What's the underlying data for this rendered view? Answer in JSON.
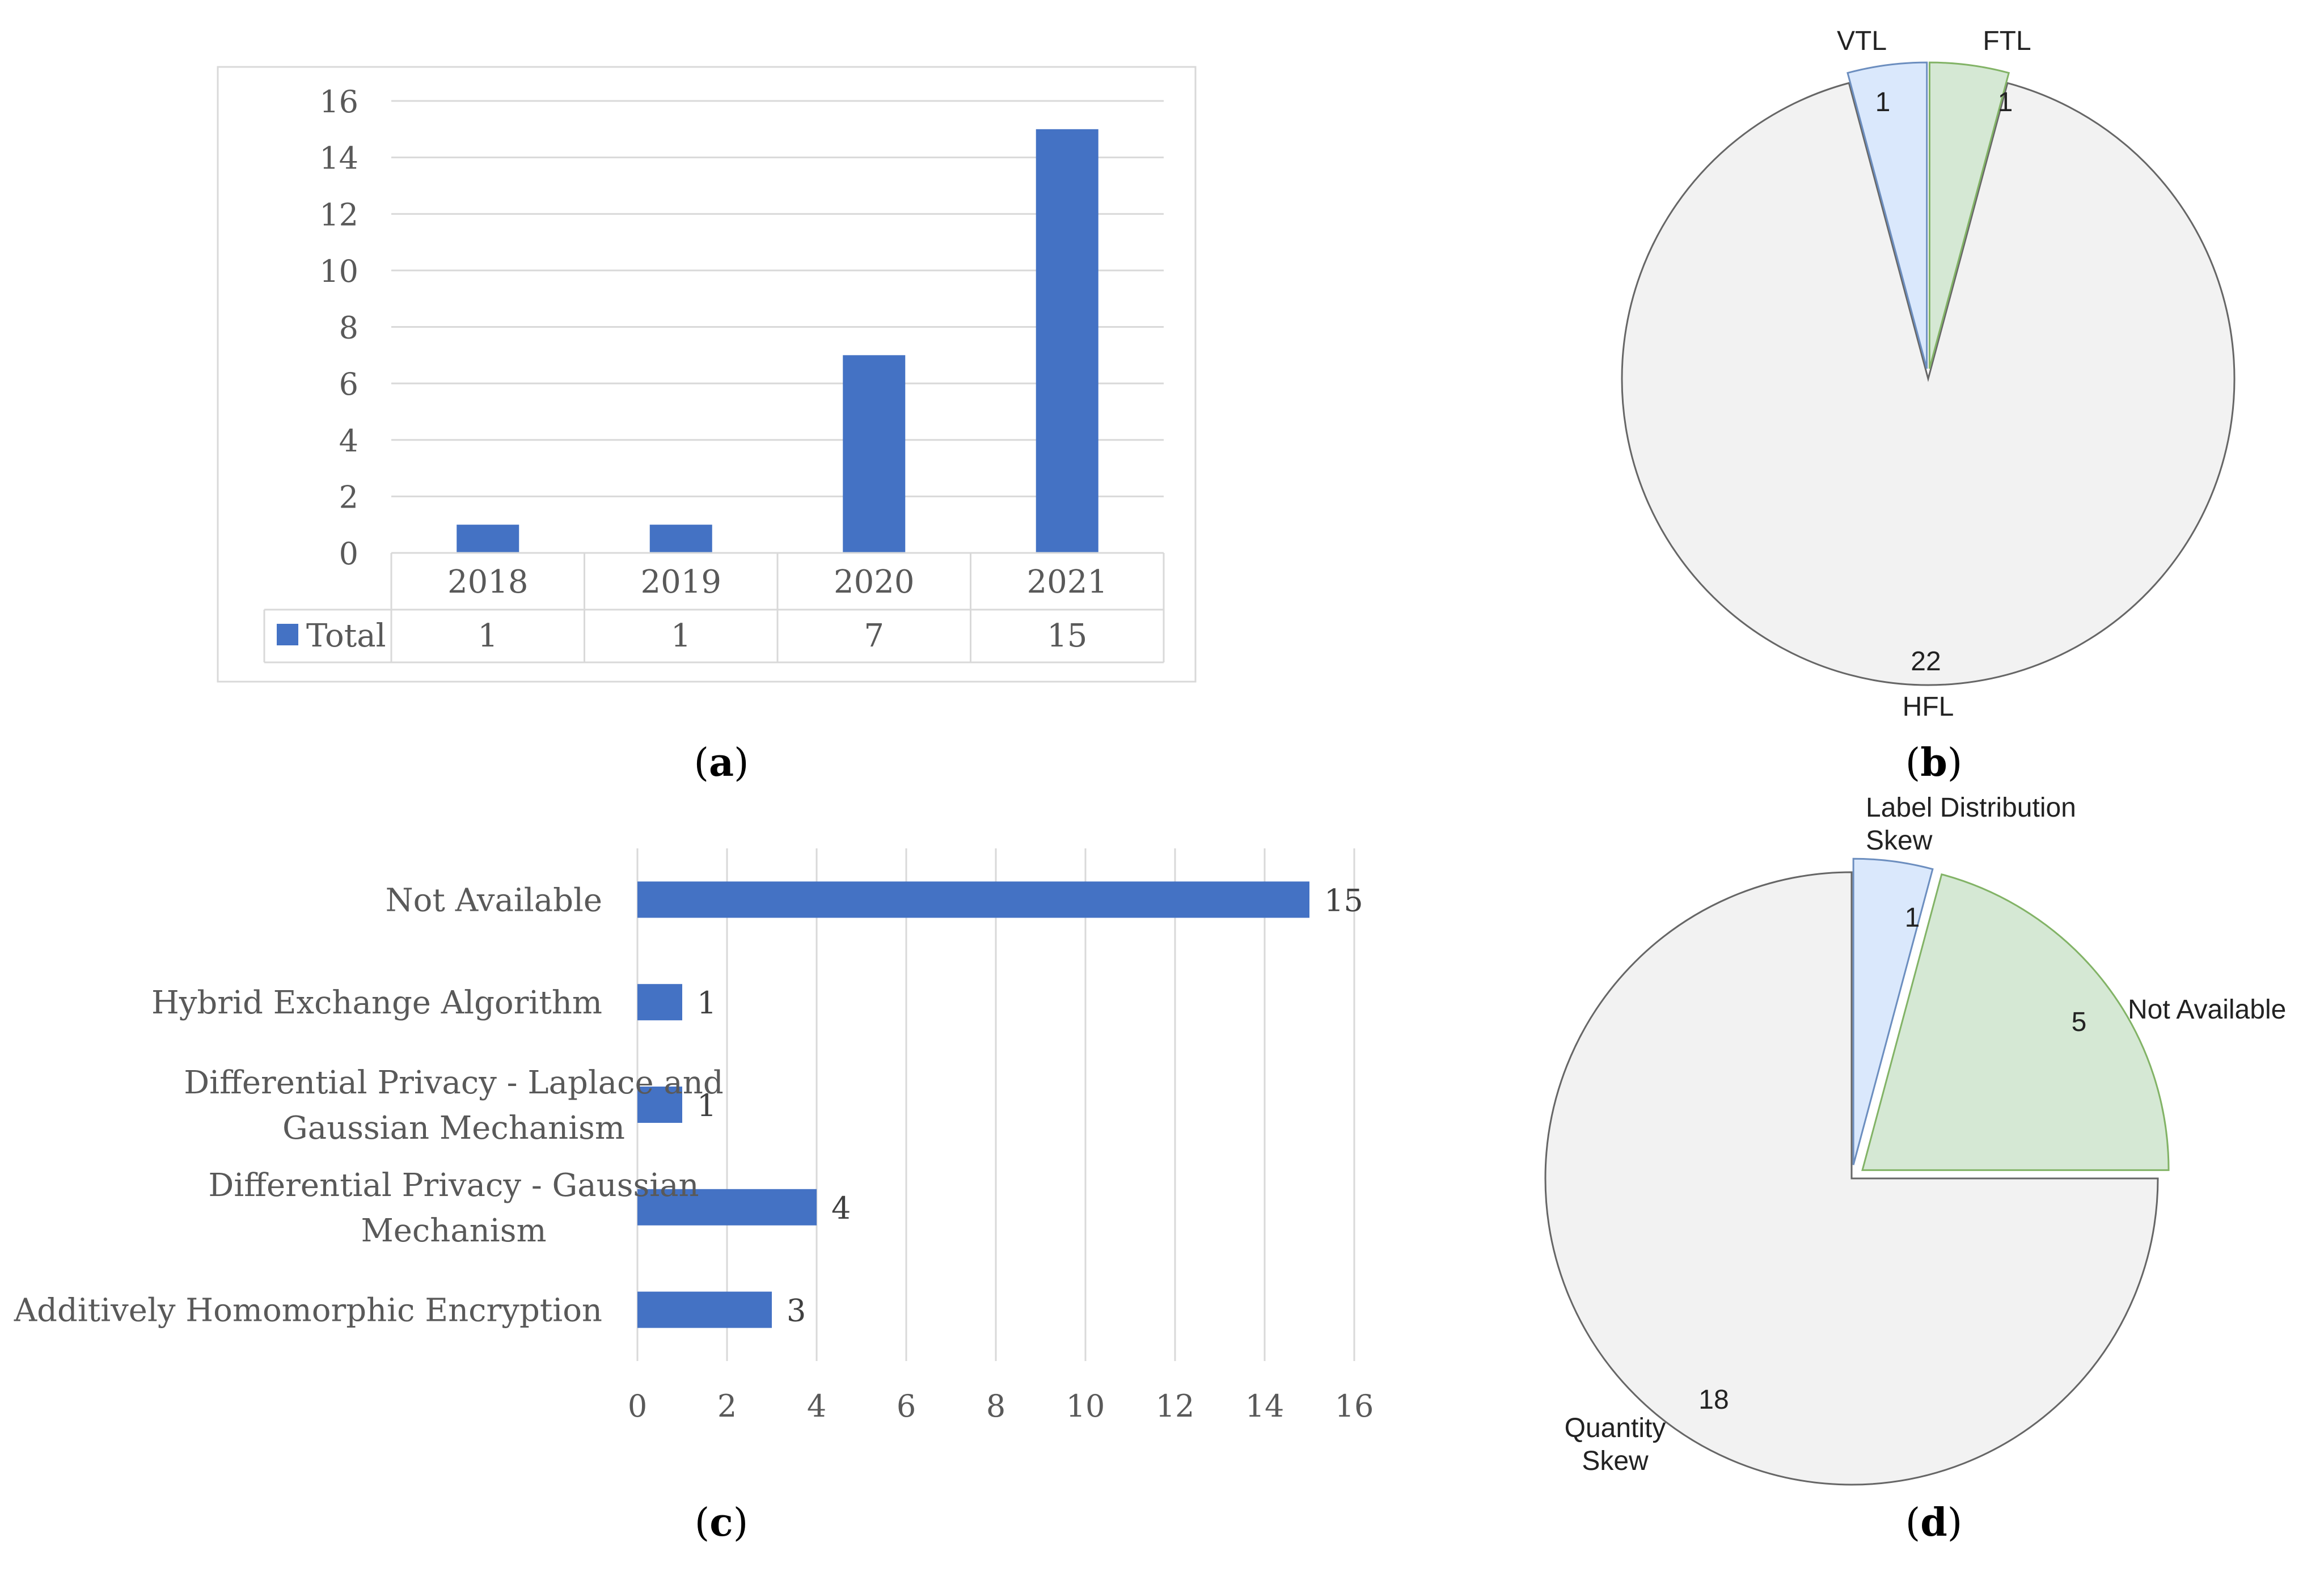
{
  "colors": {
    "bar": "#4472c4",
    "grid": "#d9d9d9",
    "pie_main": "#f2f2f2",
    "pie_blue": "#dae8fc",
    "pie_green": "#d5e8d4",
    "pie_stroke": "#666666",
    "blue_stroke": "#6c8ebf",
    "green_stroke": "#82b366"
  },
  "chart_data": [
    {
      "id": "a",
      "caption": "a",
      "type": "bar",
      "categories": [
        "2018",
        "2019",
        "2020",
        "2021"
      ],
      "series": [
        {
          "name": "Total",
          "values": [
            1,
            1,
            7,
            15
          ]
        }
      ],
      "yticks": [
        "0",
        "2",
        "4",
        "6",
        "8",
        "10",
        "12",
        "14",
        "16"
      ],
      "ylim": [
        0,
        16
      ],
      "data_table": true,
      "title": "",
      "xlabel": "",
      "ylabel": ""
    },
    {
      "id": "b",
      "caption": "b",
      "type": "pie",
      "slices": [
        {
          "label": "HFL",
          "value": 22
        },
        {
          "label": "VTL",
          "value": 1
        },
        {
          "label": "FTL",
          "value": 1
        }
      ]
    },
    {
      "id": "c",
      "caption": "c",
      "type": "bar",
      "orientation": "horizontal",
      "categories": [
        [
          "Not Available"
        ],
        [
          "Hybrid Exchange Algorithm"
        ],
        [
          "Differential Privacy - Laplace and",
          "Gaussian Mechanism"
        ],
        [
          "Differential Privacy - Gaussian",
          "Mechanism"
        ],
        [
          "Additively Homomorphic Encryption"
        ]
      ],
      "values": [
        15,
        1,
        1,
        4,
        3
      ],
      "value_labels": [
        "15",
        "1",
        "1",
        "4",
        "3"
      ],
      "xticks": [
        "0",
        "2",
        "4",
        "6",
        "8",
        "10",
        "12",
        "14",
        "16"
      ],
      "xlim": [
        0,
        16
      ]
    },
    {
      "id": "d",
      "caption": "d",
      "type": "pie",
      "slices": [
        {
          "label": "Quantity Skew",
          "value": 18,
          "label_lines": [
            "Quantity",
            "Skew"
          ]
        },
        {
          "label": "Label Distribution Skew",
          "value": 1,
          "label_lines": [
            "Label Distribution",
            "Skew"
          ]
        },
        {
          "label": "Not Available",
          "value": 5,
          "label_lines": [
            "Not Available"
          ]
        }
      ]
    }
  ]
}
